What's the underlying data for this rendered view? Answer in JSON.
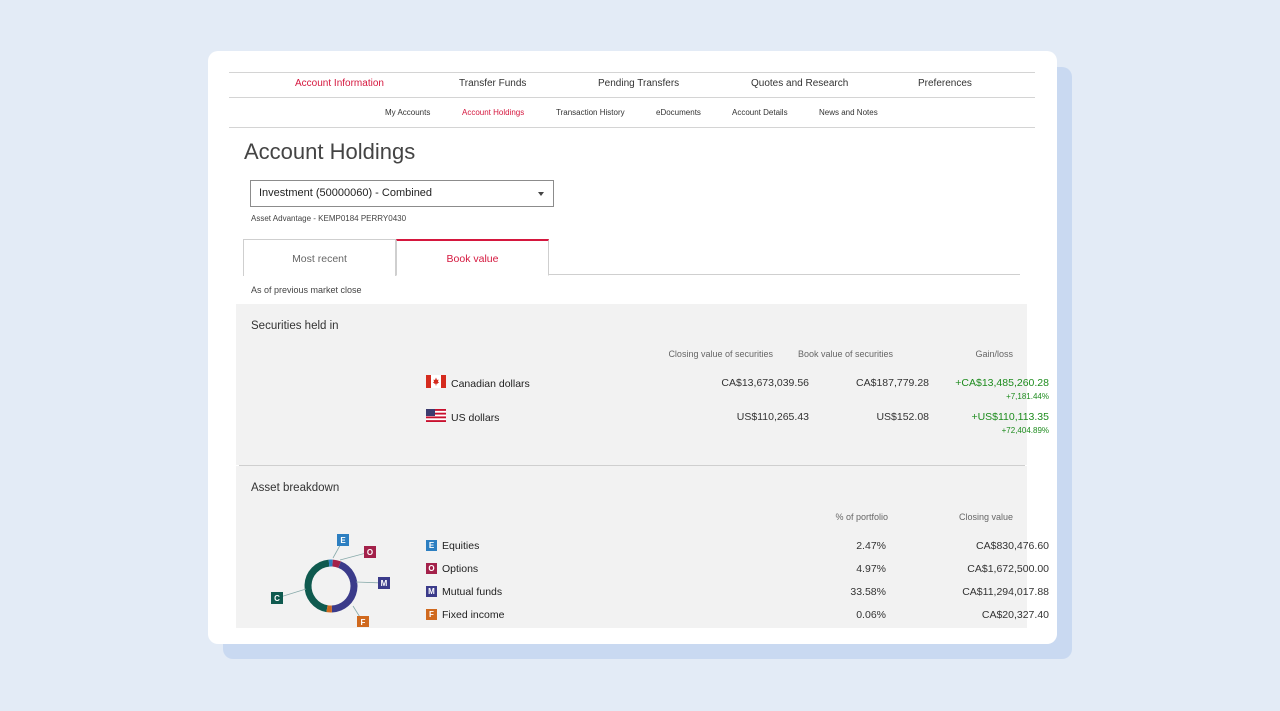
{
  "primary_nav": [
    "Account Information",
    "Transfer Funds",
    "Pending Transfers",
    "Quotes and Research",
    "Preferences"
  ],
  "secondary_nav": [
    "My Accounts",
    "Account Holdings",
    "Transaction History",
    "eDocuments",
    "Account Details",
    "News and Notes"
  ],
  "page_title": "Account Holdings",
  "account_select": {
    "value": "Investment (50000060) - Combined"
  },
  "account_sub": "Asset Advantage - KEMP0184 PERRY0430",
  "tabs": [
    "Most recent",
    "Book value"
  ],
  "market_note": "As of previous market close",
  "securities": {
    "title": "Securities held in",
    "headers": [
      "Closing value of securities",
      "Book value of securities",
      "Gain/loss"
    ],
    "rows": [
      {
        "currency": "Canadian dollars",
        "closing": "CA$13,673,039.56",
        "book": "CA$187,779.28",
        "gain": "+CA$13,485,260.28",
        "gain_pct": "+7,181.44%"
      },
      {
        "currency": "US dollars",
        "closing": "US$110,265.43",
        "book": "US$152.08",
        "gain": "+US$110,113.35",
        "gain_pct": "+72,404.89%"
      }
    ]
  },
  "assets": {
    "title": "Asset breakdown",
    "headers": [
      "% of portfolio",
      "Closing value"
    ],
    "rows": [
      {
        "badge": "E",
        "label": "Equities",
        "pct": "2.47%",
        "value": "CA$830,476.60",
        "color": "#2d7fc1"
      },
      {
        "badge": "O",
        "label": "Options",
        "pct": "4.97%",
        "value": "CA$1,672,500.00",
        "color": "#a3214a"
      },
      {
        "badge": "M",
        "label": "Mutual funds",
        "pct": "33.58%",
        "value": "CA$11,294,017.88",
        "color": "#3b3b8a"
      },
      {
        "badge": "F",
        "label": "Fixed income",
        "pct": "0.06%",
        "value": "CA$20,327.40",
        "color": "#d0691e"
      }
    ],
    "donut_labels": {
      "equities": "E",
      "options": "O",
      "mutual": "M",
      "fixed": "F",
      "cash": "C"
    },
    "donut_colors": {
      "cash": "#0f5a4f",
      "equities": "#2d7fc1",
      "options": "#a3214a",
      "mutual": "#3b3b8a",
      "fixed": "#d0691e"
    }
  }
}
